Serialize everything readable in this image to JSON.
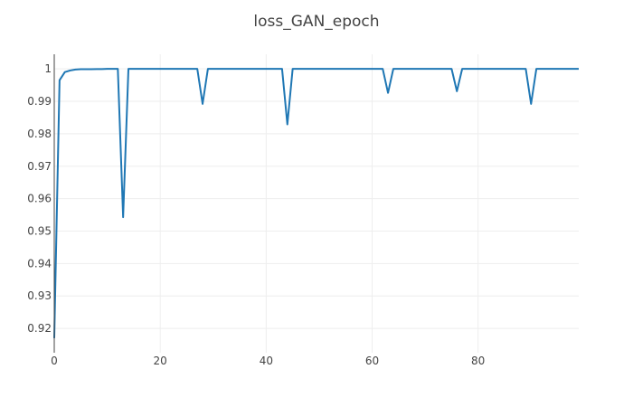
{
  "chart_data": {
    "type": "line",
    "title": "loss_GAN_epoch",
    "xlabel": "",
    "ylabel": "",
    "xlim": [
      0,
      99
    ],
    "ylim": [
      0.9125,
      1.0045
    ],
    "x_ticks": [
      0,
      20,
      40,
      60,
      80
    ],
    "y_ticks": [
      0.92,
      0.93,
      0.94,
      0.95,
      0.96,
      0.97,
      0.98,
      0.99,
      1
    ],
    "y_tick_labels": [
      "0.92",
      "0.93",
      "0.94",
      "0.95",
      "0.96",
      "0.97",
      "0.98",
      "0.99",
      "1"
    ],
    "grid": true,
    "line_color": "#1f77b4",
    "series": [
      {
        "x": [
          0,
          1,
          2,
          3,
          4,
          5,
          6,
          7,
          8,
          9,
          10,
          11,
          12,
          13,
          14,
          15,
          16,
          17,
          18,
          19,
          20,
          21,
          22,
          23,
          24,
          25,
          26,
          27,
          28,
          29,
          30,
          31,
          32,
          33,
          34,
          35,
          36,
          37,
          38,
          39,
          40,
          41,
          42,
          43,
          44,
          45,
          46,
          47,
          48,
          49,
          50,
          51,
          52,
          53,
          54,
          55,
          56,
          57,
          58,
          59,
          60,
          61,
          62,
          63,
          64,
          65,
          66,
          67,
          68,
          69,
          70,
          71,
          72,
          73,
          74,
          75,
          76,
          77,
          78,
          79,
          80,
          81,
          82,
          83,
          84,
          85,
          86,
          87,
          88,
          89,
          90,
          91,
          92,
          93,
          94,
          95,
          96,
          97,
          98,
          99
        ],
        "values": [
          0.917,
          0.9965,
          0.999,
          0.9995,
          0.9998,
          0.9999,
          0.9999,
          0.9999,
          0.99995,
          0.99995,
          1,
          1,
          1,
          0.9543,
          1,
          1,
          1,
          1,
          1,
          1,
          1,
          1,
          1,
          1,
          1,
          1,
          1,
          1,
          0.9892,
          1,
          1,
          1,
          1,
          1,
          1,
          1,
          1,
          1,
          1,
          1,
          1,
          1,
          1,
          1,
          0.9829,
          1,
          1,
          1,
          1,
          1,
          1,
          1,
          1,
          1,
          1,
          1,
          1,
          1,
          1,
          1,
          1,
          1,
          1,
          0.9926,
          1,
          1,
          1,
          1,
          1,
          1,
          1,
          1,
          1,
          1,
          1,
          1,
          0.9931,
          1,
          1,
          1,
          1,
          1,
          1,
          1,
          1,
          1,
          1,
          1,
          1,
          1,
          0.9892,
          1,
          1,
          1,
          1,
          1,
          1,
          1,
          1,
          1
        ]
      }
    ]
  }
}
